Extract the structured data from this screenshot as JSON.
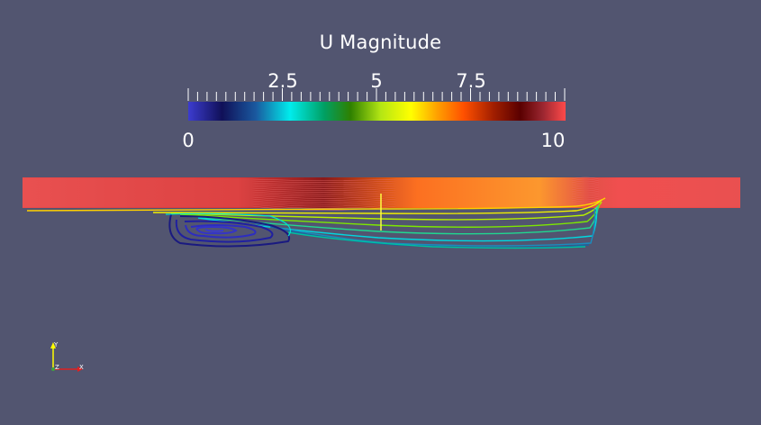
{
  "colorbar": {
    "title": "U Magnitude",
    "min_label": "0",
    "max_label": "10",
    "tick_labels": [
      "2.5",
      "5",
      "7.5"
    ],
    "range": [
      0,
      10
    ],
    "colormap": [
      "#3a3acb",
      "#16166f",
      "#1a64a0",
      "#00e6e6",
      "#00a050",
      "#2e7d00",
      "#a5e60c",
      "#ffff00",
      "#ffa000",
      "#ff5a00",
      "#b92000",
      "#640000",
      "#a0282d",
      "#ff4646"
    ]
  },
  "orientation_axes": {
    "y_label": "Y",
    "z_label": "Z",
    "x_label": "X"
  }
}
